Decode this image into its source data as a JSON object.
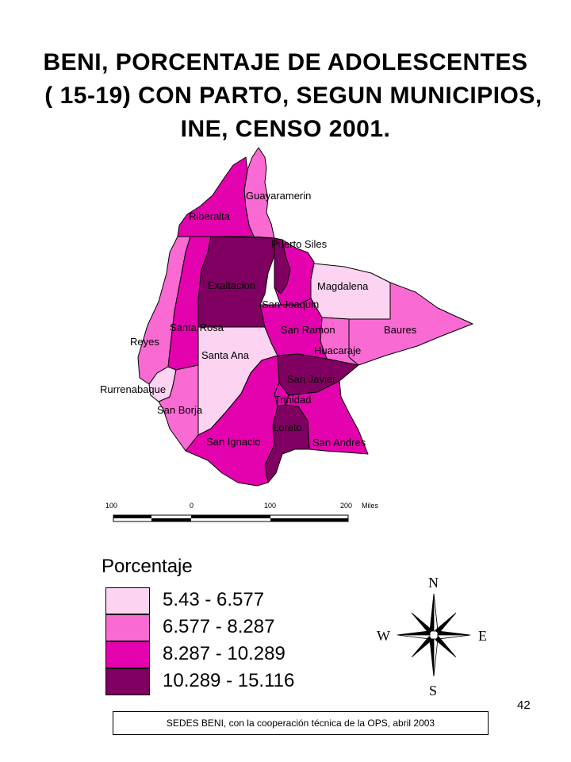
{
  "title": {
    "line1": "BENI, PORCENTAJE DE ADOLESCENTES",
    "line2": "( 15-19)    CON PARTO, SEGUN MUNICIPIOS,",
    "line3": "INE, CENSO 2001."
  },
  "colors": {
    "c1": "#fcd3f1",
    "c2": "#f96ad3",
    "c3": "#e302ad",
    "c4": "#7f0060"
  },
  "municipalities": [
    {
      "name": "Guayaramerin",
      "class": "6.577 - 8.287"
    },
    {
      "name": "Riberalta",
      "class": "8.287 - 10.289"
    },
    {
      "name": "Puerto Siles",
      "class": "10.289 - 15.116"
    },
    {
      "name": "Exaltacion",
      "class": "10.289 - 15.116"
    },
    {
      "name": "Magdalena",
      "class": "5.43 - 6.577"
    },
    {
      "name": "San Joaquin",
      "class": "8.287 - 10.289"
    },
    {
      "name": "Santa Rosa",
      "class": "8.287 - 10.289"
    },
    {
      "name": "San Ramon",
      "class": "8.287 - 10.289"
    },
    {
      "name": "Baures",
      "class": "6.577 - 8.287"
    },
    {
      "name": "Reyes",
      "class": "6.577 - 8.287"
    },
    {
      "name": "Santa Ana",
      "class": "5.43 - 6.577"
    },
    {
      "name": "Huacaraje",
      "class": "6.577 - 8.287"
    },
    {
      "name": "San Javier",
      "class": "10.289 - 15.116"
    },
    {
      "name": "Rurrenabaque",
      "class": "5.43 - 6.577"
    },
    {
      "name": "Trinidad",
      "class": "8.287 - 10.289"
    },
    {
      "name": "San Borja",
      "class": "6.577 - 8.287"
    },
    {
      "name": "Loreto",
      "class": "10.289 - 15.116"
    },
    {
      "name": "San Ignacio",
      "class": "8.287 - 10.289"
    },
    {
      "name": "San Andres",
      "class": "8.287 - 10.289"
    }
  ],
  "scale_bar": {
    "ticks": [
      "100",
      "0",
      "100",
      "200"
    ],
    "unit": "Miles"
  },
  "legend": {
    "title": "Porcentaje",
    "items": [
      {
        "range": "5.43 - 6.577"
      },
      {
        "range": "6.577 - 8.287"
      },
      {
        "range": "8.287 - 10.289"
      },
      {
        "range": "10.289 - 15.116"
      }
    ]
  },
  "compass": {
    "n": "N",
    "s": "S",
    "e": "E",
    "w": "W"
  },
  "page_number": "42",
  "source": "SEDES BENI, con la cooperación técnica de la OPS, abril  2003"
}
